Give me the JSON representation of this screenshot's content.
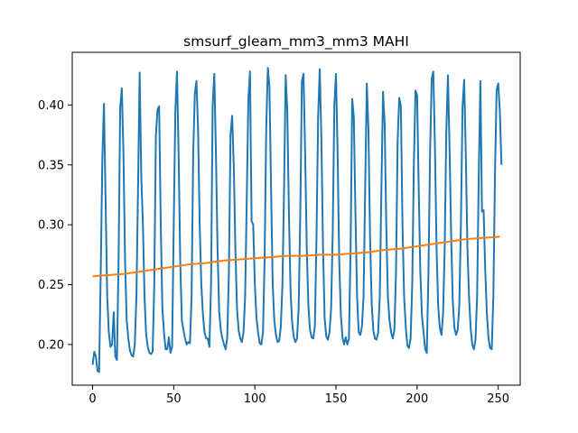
{
  "chart_data": {
    "type": "line",
    "title": "smsurf_gleam_mm3_mm3 MAHI",
    "xlabel": "",
    "ylabel": "",
    "xlim": [
      -12.55,
      263.55
    ],
    "ylim": [
      0.166,
      0.444
    ],
    "x_ticks": [
      0,
      50,
      100,
      150,
      200,
      250
    ],
    "x_tick_labels": [
      "0",
      "50",
      "100",
      "150",
      "200",
      "250"
    ],
    "y_ticks": [
      0.2,
      0.25,
      0.3,
      0.35,
      0.4
    ],
    "y_tick_labels": [
      "0.20",
      "0.25",
      "0.30",
      "0.35",
      "0.40"
    ],
    "grid": false,
    "legend": "none",
    "colors": {
      "series_1": "#1f77b4",
      "series_2": "#ff7f0e"
    },
    "series": [
      {
        "points": [
          [
            0,
            0.183
          ],
          [
            1,
            0.194
          ],
          [
            2,
            0.19
          ],
          [
            3,
            0.178
          ],
          [
            4,
            0.177
          ],
          [
            5,
            0.26
          ],
          [
            6,
            0.355
          ],
          [
            7,
            0.401
          ],
          [
            8,
            0.32
          ],
          [
            9,
            0.24
          ],
          [
            10,
            0.21
          ],
          [
            11,
            0.198
          ],
          [
            12,
            0.2
          ],
          [
            13,
            0.227
          ],
          [
            14,
            0.19
          ],
          [
            15,
            0.187
          ],
          [
            16,
            0.27
          ],
          [
            17,
            0.398
          ],
          [
            18,
            0.414
          ],
          [
            19,
            0.36
          ],
          [
            20,
            0.27
          ],
          [
            21,
            0.22
          ],
          [
            22,
            0.205
          ],
          [
            23,
            0.195
          ],
          [
            24,
            0.191
          ],
          [
            25,
            0.19
          ],
          [
            26,
            0.2
          ],
          [
            27,
            0.24
          ],
          [
            28,
            0.33
          ],
          [
            29,
            0.427
          ],
          [
            30,
            0.34
          ],
          [
            31,
            0.3
          ],
          [
            32,
            0.24
          ],
          [
            33,
            0.208
          ],
          [
            34,
            0.198
          ],
          [
            35,
            0.193
          ],
          [
            36,
            0.192
          ],
          [
            37,
            0.194
          ],
          [
            38,
            0.25
          ],
          [
            39,
            0.375
          ],
          [
            40,
            0.396
          ],
          [
            41,
            0.399
          ],
          [
            42,
            0.3
          ],
          [
            43,
            0.23
          ],
          [
            44,
            0.21
          ],
          [
            45,
            0.196
          ],
          [
            46,
            0.196
          ],
          [
            47,
            0.206
          ],
          [
            48,
            0.193
          ],
          [
            49,
            0.198
          ],
          [
            50,
            0.3
          ],
          [
            51,
            0.395
          ],
          [
            52,
            0.428
          ],
          [
            53,
            0.36
          ],
          [
            54,
            0.27
          ],
          [
            55,
            0.22
          ],
          [
            56,
            0.212
          ],
          [
            57,
            0.205
          ],
          [
            58,
            0.2
          ],
          [
            59,
            0.202
          ],
          [
            60,
            0.201
          ],
          [
            61,
            0.24
          ],
          [
            62,
            0.36
          ],
          [
            63,
            0.409
          ],
          [
            64,
            0.42
          ],
          [
            65,
            0.38
          ],
          [
            66,
            0.3
          ],
          [
            67,
            0.25
          ],
          [
            68,
            0.225
          ],
          [
            69,
            0.21
          ],
          [
            70,
            0.205
          ],
          [
            71,
            0.205
          ],
          [
            72,
            0.198
          ],
          [
            73,
            0.25
          ],
          [
            74,
            0.4
          ],
          [
            75,
            0.426
          ],
          [
            76,
            0.36
          ],
          [
            77,
            0.28
          ],
          [
            78,
            0.228
          ],
          [
            79,
            0.212
          ],
          [
            80,
            0.205
          ],
          [
            81,
            0.2
          ],
          [
            82,
            0.196
          ],
          [
            83,
            0.206
          ],
          [
            84,
            0.26
          ],
          [
            85,
            0.375
          ],
          [
            86,
            0.391
          ],
          [
            87,
            0.35
          ],
          [
            88,
            0.28
          ],
          [
            89,
            0.23
          ],
          [
            90,
            0.212
          ],
          [
            91,
            0.205
          ],
          [
            92,
            0.202
          ],
          [
            93,
            0.21
          ],
          [
            94,
            0.24
          ],
          [
            95,
            0.32
          ],
          [
            96,
            0.405
          ],
          [
            97,
            0.428
          ],
          [
            98,
            0.303
          ],
          [
            99,
            0.3
          ],
          [
            100,
            0.25
          ],
          [
            101,
            0.222
          ],
          [
            102,
            0.21
          ],
          [
            103,
            0.201
          ],
          [
            104,
            0.2
          ],
          [
            105,
            0.21
          ],
          [
            106,
            0.27
          ],
          [
            107,
            0.38
          ],
          [
            108,
            0.431
          ],
          [
            109,
            0.415
          ],
          [
            110,
            0.33
          ],
          [
            111,
            0.25
          ],
          [
            112,
            0.22
          ],
          [
            113,
            0.208
          ],
          [
            114,
            0.202
          ],
          [
            115,
            0.203
          ],
          [
            116,
            0.215
          ],
          [
            117,
            0.25
          ],
          [
            118,
            0.33
          ],
          [
            119,
            0.425
          ],
          [
            120,
            0.395
          ],
          [
            121,
            0.31
          ],
          [
            122,
            0.245
          ],
          [
            123,
            0.218
          ],
          [
            124,
            0.206
          ],
          [
            125,
            0.202
          ],
          [
            126,
            0.205
          ],
          [
            127,
            0.23
          ],
          [
            128,
            0.31
          ],
          [
            129,
            0.42
          ],
          [
            130,
            0.426
          ],
          [
            131,
            0.36
          ],
          [
            132,
            0.28
          ],
          [
            133,
            0.232
          ],
          [
            134,
            0.212
          ],
          [
            135,
            0.206
          ],
          [
            136,
            0.205
          ],
          [
            137,
            0.215
          ],
          [
            138,
            0.29
          ],
          [
            139,
            0.39
          ],
          [
            140,
            0.43
          ],
          [
            141,
            0.372
          ],
          [
            142,
            0.282
          ],
          [
            143,
            0.222
          ],
          [
            144,
            0.207
          ],
          [
            145,
            0.204
          ],
          [
            146,
            0.21
          ],
          [
            147,
            0.23
          ],
          [
            148,
            0.293
          ],
          [
            149,
            0.4
          ],
          [
            150,
            0.426
          ],
          [
            151,
            0.36
          ],
          [
            152,
            0.27
          ],
          [
            153,
            0.225
          ],
          [
            154,
            0.206
          ],
          [
            155,
            0.2
          ],
          [
            156,
            0.206
          ],
          [
            157,
            0.2
          ],
          [
            158,
            0.205
          ],
          [
            159,
            0.28
          ],
          [
            160,
            0.405
          ],
          [
            161,
            0.39
          ],
          [
            162,
            0.31
          ],
          [
            163,
            0.24
          ],
          [
            164,
            0.21
          ],
          [
            165,
            0.208
          ],
          [
            166,
            0.215
          ],
          [
            167,
            0.24
          ],
          [
            168,
            0.33
          ],
          [
            169,
            0.418
          ],
          [
            170,
            0.38
          ],
          [
            171,
            0.29
          ],
          [
            172,
            0.235
          ],
          [
            173,
            0.212
          ],
          [
            174,
            0.205
          ],
          [
            175,
            0.204
          ],
          [
            176,
            0.21
          ],
          [
            177,
            0.24
          ],
          [
            178,
            0.33
          ],
          [
            179,
            0.411
          ],
          [
            180,
            0.385
          ],
          [
            181,
            0.3
          ],
          [
            182,
            0.24
          ],
          [
            183,
            0.22
          ],
          [
            184,
            0.21
          ],
          [
            185,
            0.205
          ],
          [
            186,
            0.212
          ],
          [
            187,
            0.26
          ],
          [
            188,
            0.37
          ],
          [
            189,
            0.406
          ],
          [
            190,
            0.399
          ],
          [
            191,
            0.3
          ],
          [
            192,
            0.24
          ],
          [
            193,
            0.215
          ],
          [
            194,
            0.199
          ],
          [
            195,
            0.197
          ],
          [
            196,
            0.205
          ],
          [
            197,
            0.25
          ],
          [
            198,
            0.35
          ],
          [
            199,
            0.412
          ],
          [
            200,
            0.408
          ],
          [
            201,
            0.33
          ],
          [
            202,
            0.26
          ],
          [
            203,
            0.224
          ],
          [
            204,
            0.21
          ],
          [
            205,
            0.196
          ],
          [
            206,
            0.193
          ],
          [
            207,
            0.26
          ],
          [
            208,
            0.36
          ],
          [
            209,
            0.422
          ],
          [
            210,
            0.428
          ],
          [
            211,
            0.365
          ],
          [
            212,
            0.28
          ],
          [
            213,
            0.232
          ],
          [
            214,
            0.214
          ],
          [
            215,
            0.208
          ],
          [
            216,
            0.225
          ],
          [
            217,
            0.28
          ],
          [
            218,
            0.378
          ],
          [
            219,
            0.425
          ],
          [
            220,
            0.365
          ],
          [
            221,
            0.29
          ],
          [
            222,
            0.236
          ],
          [
            223,
            0.214
          ],
          [
            224,
            0.208
          ],
          [
            225,
            0.212
          ],
          [
            226,
            0.232
          ],
          [
            227,
            0.3
          ],
          [
            228,
            0.398
          ],
          [
            229,
            0.421
          ],
          [
            230,
            0.36
          ],
          [
            231,
            0.282
          ],
          [
            232,
            0.24
          ],
          [
            233,
            0.214
          ],
          [
            234,
            0.2
          ],
          [
            235,
            0.196
          ],
          [
            236,
            0.204
          ],
          [
            237,
            0.24
          ],
          [
            238,
            0.34
          ],
          [
            239,
            0.42
          ],
          [
            240,
            0.311
          ],
          [
            241,
            0.312
          ],
          [
            242,
            0.262
          ],
          [
            243,
            0.226
          ],
          [
            244,
            0.205
          ],
          [
            245,
            0.197
          ],
          [
            246,
            0.196
          ],
          [
            247,
            0.24
          ],
          [
            248,
            0.342
          ],
          [
            249,
            0.412
          ],
          [
            250,
            0.418
          ],
          [
            251,
            0.395
          ],
          [
            252,
            0.35
          ]
        ]
      },
      {
        "points": [
          [
            0,
            0.257
          ],
          [
            10,
            0.258
          ],
          [
            20,
            0.259
          ],
          [
            30,
            0.261
          ],
          [
            40,
            0.263
          ],
          [
            50,
            0.265
          ],
          [
            60,
            0.267
          ],
          [
            70,
            0.268
          ],
          [
            80,
            0.27
          ],
          [
            90,
            0.271
          ],
          [
            100,
            0.272
          ],
          [
            110,
            0.273
          ],
          [
            120,
            0.274
          ],
          [
            130,
            0.274
          ],
          [
            140,
            0.275
          ],
          [
            150,
            0.275
          ],
          [
            160,
            0.276
          ],
          [
            170,
            0.277
          ],
          [
            180,
            0.279
          ],
          [
            190,
            0.28
          ],
          [
            200,
            0.282
          ],
          [
            210,
            0.284
          ],
          [
            220,
            0.286
          ],
          [
            230,
            0.288
          ],
          [
            240,
            0.289
          ],
          [
            251,
            0.29
          ]
        ]
      }
    ]
  }
}
